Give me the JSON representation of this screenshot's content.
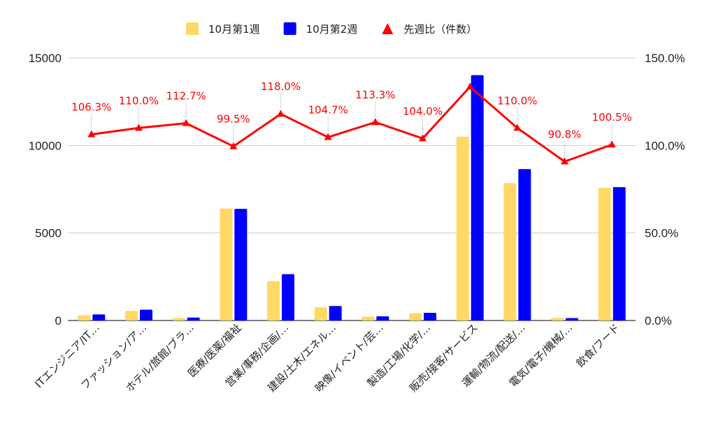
{
  "chart_data": {
    "type": "bar",
    "categories": [
      "ITエンジニア/IT…",
      "ファッション/ア…",
      "ホテル/旅館/ブラ…",
      "医療/医薬/福祉",
      "営業/事務/企画/…",
      "建設/土木/エネル…",
      "映像/イベント/芸…",
      "製造/工場/化学/…",
      "販売/接客/サービス",
      "運輸/物流/配送/…",
      "電気/電子/機械/…",
      "飲食/フード"
    ],
    "series": [
      {
        "name": "10月第1週",
        "type": "bar",
        "axis": "left",
        "color": "#FFD866",
        "values": [
          300,
          550,
          150,
          6400,
          2250,
          760,
          220,
          420,
          10500,
          7850,
          150,
          7580
        ]
      },
      {
        "name": "10月第2週",
        "type": "bar",
        "axis": "left",
        "color": "#0000FF",
        "values": [
          350,
          620,
          170,
          6380,
          2650,
          830,
          240,
          440,
          14020,
          8650,
          140,
          7620
        ]
      },
      {
        "name": "先週比（件数）",
        "type": "line",
        "axis": "right",
        "color": "#FF0000",
        "values": [
          106.3,
          110.0,
          112.7,
          99.5,
          118.0,
          104.7,
          113.3,
          104.0,
          133.5,
          110.0,
          90.8,
          100.5
        ],
        "labels": [
          "106.3%",
          "110.0%",
          "112.7%",
          "99.5%",
          "118.0%",
          "104.7%",
          "113.3%",
          "104.0%",
          "",
          "110.0%",
          "90.8%",
          "100.5%"
        ]
      }
    ],
    "ylim_left": [
      0,
      15000
    ],
    "yticks_left": [
      "15000",
      "10000",
      "5000",
      "0"
    ],
    "ylim_right": [
      0,
      150
    ],
    "yticks_right": [
      "150.0%",
      "100.0%",
      "50.0%",
      "0.0%"
    ],
    "legend_position": "top",
    "grid": true
  }
}
